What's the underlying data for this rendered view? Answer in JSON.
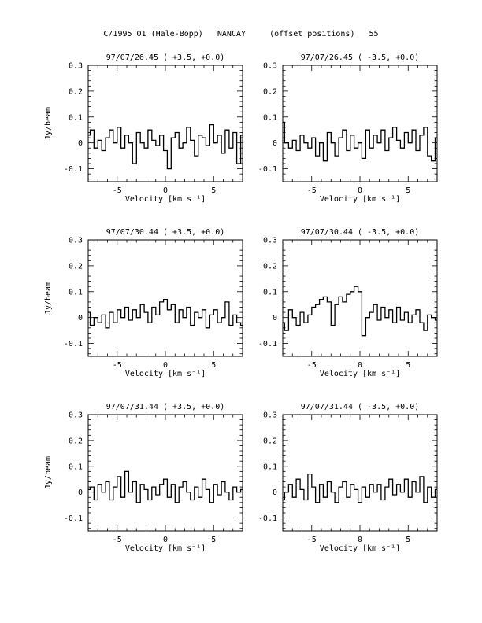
{
  "page": {
    "title": "C/1995 O1 (Hale-Bopp)   NANCAY     (offset positions)   55"
  },
  "chart_data": [
    {
      "type": "line",
      "title": "97/07/26.45  ( +3.5, +0.0)",
      "xlabel": "Velocity [km s⁻¹]",
      "ylabel": "Jy/beam",
      "xlim": [
        -8,
        8
      ],
      "ylim": [
        -0.15,
        0.3
      ],
      "xticks": [
        "-5",
        "0",
        "5"
      ],
      "yticks": [
        "-0.1",
        "0",
        "0.1",
        "0.2",
        "0.3"
      ],
      "grid": false,
      "series": [
        {
          "x": [
            -8.0,
            -7.6,
            -7.2,
            -6.8,
            -6.4,
            -6.0,
            -5.6,
            -5.2,
            -4.8,
            -4.4,
            -4.0,
            -3.6,
            -3.2,
            -2.8,
            -2.4,
            -2.0,
            -1.6,
            -1.2,
            -0.8,
            -0.4,
            0.0,
            0.4,
            0.8,
            1.2,
            1.6,
            2.0,
            2.4,
            2.8,
            3.2,
            3.6,
            4.0,
            4.4,
            4.8,
            5.2,
            5.6,
            6.0,
            6.4,
            6.8,
            7.2,
            7.6,
            8.0
          ],
          "y": [
            0.03,
            0.05,
            -0.02,
            0.01,
            -0.03,
            0.02,
            0.05,
            0.0,
            0.06,
            -0.02,
            0.03,
            0.0,
            -0.08,
            0.04,
            0.0,
            -0.02,
            0.05,
            0.01,
            -0.01,
            0.03,
            -0.03,
            -0.1,
            0.02,
            0.04,
            -0.02,
            0.0,
            0.06,
            0.01,
            -0.05,
            0.03,
            0.02,
            -0.01,
            0.07,
            0.0,
            0.03,
            -0.04,
            0.05,
            -0.02,
            0.04,
            -0.08,
            0.03
          ]
        }
      ]
    },
    {
      "type": "line",
      "title": "97/07/26.45  ( -3.5, +0.0)",
      "xlabel": "Velocity [km s⁻¹]",
      "ylabel": "",
      "xlim": [
        -8,
        8
      ],
      "ylim": [
        -0.15,
        0.3
      ],
      "xticks": [
        "-5",
        "0",
        "5"
      ],
      "yticks": [
        "-0.1",
        "0",
        "0.1",
        "0.2",
        "0.3"
      ],
      "grid": false,
      "series": [
        {
          "x": [
            -8.0,
            -7.6,
            -7.2,
            -6.8,
            -6.4,
            -6.0,
            -5.6,
            -5.2,
            -4.8,
            -4.4,
            -4.0,
            -3.6,
            -3.2,
            -2.8,
            -2.4,
            -2.0,
            -1.6,
            -1.2,
            -0.8,
            -0.4,
            0.0,
            0.4,
            0.8,
            1.2,
            1.6,
            2.0,
            2.4,
            2.8,
            3.2,
            3.6,
            4.0,
            4.4,
            4.8,
            5.2,
            5.6,
            6.0,
            6.4,
            6.8,
            7.2,
            7.6,
            8.0
          ],
          "y": [
            0.08,
            0.0,
            -0.02,
            0.01,
            -0.03,
            0.03,
            0.0,
            -0.02,
            0.02,
            -0.05,
            0.0,
            -0.07,
            0.04,
            0.0,
            -0.05,
            0.02,
            0.05,
            -0.03,
            0.03,
            -0.02,
            0.0,
            -0.06,
            0.05,
            -0.02,
            0.03,
            0.0,
            0.05,
            -0.03,
            0.02,
            0.06,
            0.01,
            -0.02,
            0.04,
            0.0,
            0.05,
            -0.03,
            0.03,
            0.06,
            -0.05,
            -0.07,
            0.02
          ]
        }
      ]
    },
    {
      "type": "line",
      "title": "97/07/30.44  ( +3.5, +0.0)",
      "xlabel": "Velocity [km s⁻¹]",
      "ylabel": "Jy/beam",
      "xlim": [
        -8,
        8
      ],
      "ylim": [
        -0.15,
        0.3
      ],
      "xticks": [
        "-5",
        "0",
        "5"
      ],
      "yticks": [
        "-0.1",
        "0",
        "0.1",
        "0.2",
        "0.3"
      ],
      "grid": false,
      "series": [
        {
          "x": [
            -8.0,
            -7.6,
            -7.2,
            -6.8,
            -6.4,
            -6.0,
            -5.6,
            -5.2,
            -4.8,
            -4.4,
            -4.0,
            -3.6,
            -3.2,
            -2.8,
            -2.4,
            -2.0,
            -1.6,
            -1.2,
            -0.8,
            -0.4,
            0.0,
            0.4,
            0.8,
            1.2,
            1.6,
            2.0,
            2.4,
            2.8,
            3.2,
            3.6,
            4.0,
            4.4,
            4.8,
            5.2,
            5.6,
            6.0,
            6.4,
            6.8,
            7.2,
            7.6,
            8.0
          ],
          "y": [
            0.02,
            -0.03,
            0.0,
            -0.02,
            0.01,
            -0.04,
            0.02,
            -0.02,
            0.03,
            0.0,
            0.04,
            -0.01,
            0.03,
            0.0,
            0.05,
            0.02,
            -0.02,
            0.04,
            0.01,
            0.06,
            0.07,
            0.03,
            0.05,
            -0.02,
            0.03,
            0.0,
            0.04,
            -0.03,
            0.02,
            0.0,
            0.03,
            -0.04,
            0.01,
            0.03,
            -0.02,
            0.0,
            0.06,
            -0.03,
            0.01,
            -0.02,
            -0.03
          ]
        }
      ]
    },
    {
      "type": "line",
      "title": "97/07/30.44  ( -3.5, +0.0)",
      "xlabel": "Velocity [km s⁻¹]",
      "ylabel": "",
      "xlim": [
        -8,
        8
      ],
      "ylim": [
        -0.15,
        0.3
      ],
      "xticks": [
        "-5",
        "0",
        "5"
      ],
      "yticks": [
        "-0.1",
        "0",
        "0.1",
        "0.2",
        "0.3"
      ],
      "grid": false,
      "series": [
        {
          "x": [
            -8.0,
            -7.6,
            -7.2,
            -6.8,
            -6.4,
            -6.0,
            -5.6,
            -5.2,
            -4.8,
            -4.4,
            -4.0,
            -3.6,
            -3.2,
            -2.8,
            -2.4,
            -2.0,
            -1.6,
            -1.2,
            -0.8,
            -0.4,
            0.0,
            0.4,
            0.8,
            1.2,
            1.6,
            2.0,
            2.4,
            2.8,
            3.2,
            3.6,
            4.0,
            4.4,
            4.8,
            5.2,
            5.6,
            6.0,
            6.4,
            6.8,
            7.2,
            7.6,
            8.0
          ],
          "y": [
            -0.02,
            -0.05,
            0.03,
            0.0,
            -0.03,
            0.02,
            -0.02,
            0.01,
            0.04,
            0.05,
            0.07,
            0.08,
            0.06,
            -0.03,
            0.05,
            0.08,
            0.06,
            0.09,
            0.1,
            0.12,
            0.1,
            -0.07,
            0.0,
            0.02,
            0.05,
            -0.01,
            0.04,
            0.0,
            0.03,
            -0.02,
            0.04,
            -0.01,
            0.02,
            -0.02,
            0.01,
            0.03,
            -0.02,
            -0.05,
            0.01,
            0.0,
            -0.01
          ]
        }
      ]
    },
    {
      "type": "line",
      "title": "97/07/31.44  ( +3.5, +0.0)",
      "xlabel": "Velocity [km s⁻¹]",
      "ylabel": "Jy/beam",
      "xlim": [
        -8,
        8
      ],
      "ylim": [
        -0.15,
        0.3
      ],
      "xticks": [
        "-5",
        "0",
        "5"
      ],
      "yticks": [
        "-0.1",
        "0",
        "0.1",
        "0.2",
        "0.3"
      ],
      "grid": false,
      "series": [
        {
          "x": [
            -8.0,
            -7.6,
            -7.2,
            -6.8,
            -6.4,
            -6.0,
            -5.6,
            -5.2,
            -4.8,
            -4.4,
            -4.0,
            -3.6,
            -3.2,
            -2.8,
            -2.4,
            -2.0,
            -1.6,
            -1.2,
            -0.8,
            -0.4,
            0.0,
            0.4,
            0.8,
            1.2,
            1.6,
            2.0,
            2.4,
            2.8,
            3.2,
            3.6,
            4.0,
            4.4,
            4.8,
            5.2,
            5.6,
            6.0,
            6.4,
            6.8,
            7.2,
            7.6,
            8.0
          ],
          "y": [
            0.01,
            0.02,
            -0.03,
            0.03,
            0.0,
            0.04,
            -0.03,
            0.02,
            0.06,
            -0.02,
            0.08,
            0.0,
            0.04,
            -0.04,
            0.03,
            0.01,
            -0.03,
            0.02,
            -0.01,
            0.03,
            0.05,
            -0.02,
            0.03,
            -0.04,
            0.02,
            0.04,
            0.0,
            -0.03,
            0.02,
            -0.02,
            0.05,
            0.01,
            -0.04,
            0.03,
            -0.01,
            0.04,
            0.0,
            -0.03,
            0.02,
            0.0,
            0.01
          ]
        }
      ]
    },
    {
      "type": "line",
      "title": "97/07/31.44  ( -3.5, +0.0)",
      "xlabel": "Velocity [km s⁻¹]",
      "ylabel": "",
      "xlim": [
        -8,
        8
      ],
      "ylim": [
        -0.15,
        0.3
      ],
      "xticks": [
        "-5",
        "0",
        "5"
      ],
      "yticks": [
        "-0.1",
        "0",
        "0.1",
        "0.2",
        "0.3"
      ],
      "grid": false,
      "series": [
        {
          "x": [
            -8.0,
            -7.6,
            -7.2,
            -6.8,
            -6.4,
            -6.0,
            -5.6,
            -5.2,
            -4.8,
            -4.4,
            -4.0,
            -3.6,
            -3.2,
            -2.8,
            -2.4,
            -2.0,
            -1.6,
            -1.2,
            -0.8,
            -0.4,
            0.0,
            0.4,
            0.8,
            1.2,
            1.6,
            2.0,
            2.4,
            2.8,
            3.2,
            3.6,
            4.0,
            4.4,
            4.8,
            5.2,
            5.6,
            6.0,
            6.4,
            6.8,
            7.2,
            7.6,
            8.0
          ],
          "y": [
            -0.03,
            0.0,
            0.03,
            -0.02,
            0.05,
            0.01,
            -0.03,
            0.07,
            0.02,
            -0.04,
            0.03,
            -0.02,
            0.04,
            0.0,
            -0.04,
            0.02,
            0.04,
            -0.02,
            0.03,
            0.01,
            -0.04,
            0.02,
            -0.02,
            0.03,
            0.0,
            0.03,
            -0.03,
            0.02,
            0.05,
            -0.01,
            0.03,
            0.0,
            0.05,
            -0.02,
            0.04,
            0.0,
            0.06,
            -0.04,
            0.02,
            -0.02,
            0.01
          ]
        }
      ]
    }
  ]
}
